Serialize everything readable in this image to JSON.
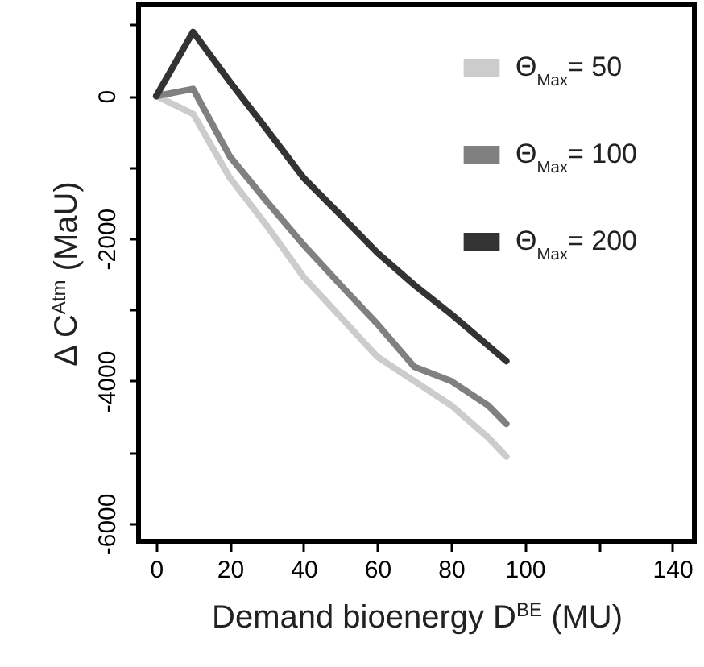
{
  "chart_data": {
    "type": "line",
    "xlabel": "Demand bioenergy D$^{BE}$ (MU)",
    "ylabel": "Δ C$^{Atm}$ (MaU)",
    "xlim": [
      -4.8,
      146
    ],
    "xticks": [
      0,
      20,
      40,
      60,
      80,
      100,
      {
        "value": 120,
        "label": null
      },
      140
    ],
    "ylim": [
      -6250,
      1280
    ],
    "yticks": [
      -6000,
      {
        "value": -5000,
        "label": null
      },
      -4000,
      {
        "value": -3000,
        "label": null
      },
      -2000,
      {
        "value": -1000,
        "label": null
      },
      0,
      {
        "value": 1000,
        "label": null
      }
    ],
    "grid": false,
    "legend": "top right",
    "line_style": "solid",
    "marker": "none",
    "x": [
      0,
      10,
      20,
      30,
      40,
      50,
      60,
      70,
      80,
      90,
      95
    ],
    "series": [
      {
        "name": "Θ$_{Max}$= 50",
        "color": "#cccccc",
        "values": [
          0,
          -250,
          -1150,
          -1820,
          -2540,
          -3100,
          -3660,
          -4000,
          -4340,
          -4790,
          -5060
        ]
      },
      {
        "name": "Θ$_{Max}$= 100",
        "color": "#808080",
        "values": [
          0,
          100,
          -850,
          -1480,
          -2090,
          -2650,
          -3200,
          -3800,
          -4000,
          -4340,
          -4600
        ]
      },
      {
        "name": "Θ$_{Max}$= 200",
        "color": "#333333",
        "values": [
          0,
          900,
          200,
          -470,
          -1150,
          -1670,
          -2200,
          -2650,
          -3060,
          -3500,
          -3720
        ]
      }
    ]
  }
}
